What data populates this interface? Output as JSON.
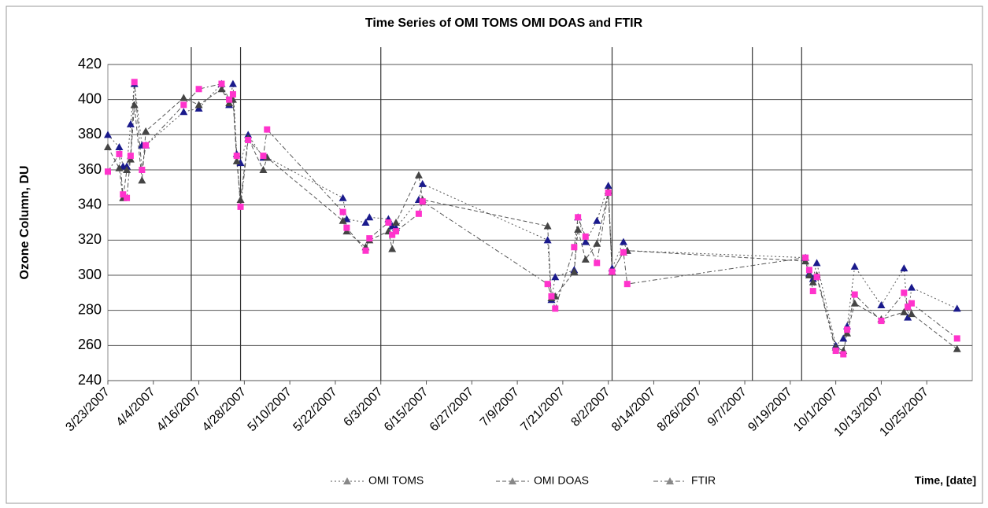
{
  "chart_data": {
    "type": "line",
    "title": "Time Series of OMI TOMS OMI DOAS and FTIR",
    "y_label": "Ozone Column, DU",
    "x_label": "Time, [date]",
    "x": [
      "3/23/2007",
      "3/26/2007",
      "3/27/2007",
      "3/28/2007",
      "3/29/2007",
      "3/30/2007",
      "4/1/2007",
      "4/2/2007",
      "4/12/2007",
      "4/16/2007",
      "4/22/2007",
      "4/24/2007",
      "4/25/2007",
      "4/26/2007",
      "4/27/2007",
      "4/29/2007",
      "5/3/2007",
      "5/4/2007",
      "5/24/2007",
      "5/25/2007",
      "5/30/2007",
      "5/31/2007",
      "6/5/2007",
      "6/6/2007",
      "6/7/2007",
      "6/13/2007",
      "6/14/2007",
      "7/17/2007",
      "7/18/2007",
      "7/19/2007",
      "7/24/2007",
      "7/25/2007",
      "7/27/2007",
      "7/30/2007",
      "8/2/2007",
      "8/3/2007",
      "8/6/2007",
      "8/7/2007",
      "9/23/2007",
      "9/24/2007",
      "9/25/2007",
      "9/26/2007",
      "10/1/2007",
      "10/3/2007",
      "10/4/2007",
      "10/6/2007",
      "10/13/2007",
      "10/19/2007",
      "10/20/2007",
      "10/21/2007",
      "11/2/2007"
    ],
    "series": [
      {
        "name": "OMI TOMS",
        "color": "#1a1a8c",
        "marker": "triangle",
        "values": [
          380,
          373,
          362,
          362,
          386,
          409,
          374,
          374,
          393,
          395,
          409,
          397,
          409,
          369,
          364,
          380,
          367,
          367,
          344,
          332,
          330,
          333,
          332,
          328,
          327,
          343,
          352,
          320,
          286,
          299,
          303,
          333,
          319,
          331,
          351,
          304,
          319,
          314,
          310,
          301,
          298,
          307,
          260,
          264,
          271,
          305,
          283,
          304,
          276,
          293,
          281
        ]
      },
      {
        "name": "OMI DOAS",
        "color": "#444444",
        "marker": "triangle",
        "values": [
          373,
          361,
          344,
          360,
          366,
          397,
          354,
          382,
          401,
          397,
          406,
          398,
          400,
          365,
          343,
          378,
          360,
          367,
          331,
          325,
          316,
          320,
          325,
          315,
          330,
          357,
          343,
          328,
          287,
          288,
          302,
          326,
          309,
          318,
          348,
          302,
          313,
          314,
          308,
          300,
          296,
          300,
          259,
          257,
          267,
          284,
          275,
          279,
          282,
          278,
          258
        ]
      },
      {
        "name": "FTIR",
        "color": "#ff33cc",
        "marker": "square",
        "values": [
          359,
          369,
          346,
          344,
          368,
          410,
          360,
          374,
          397,
          406,
          409,
          400,
          403,
          368,
          339,
          377,
          368,
          383,
          336,
          327,
          314,
          321,
          330,
          323,
          325,
          335,
          342,
          295,
          288,
          281,
          316,
          333,
          322,
          307,
          347,
          302,
          313,
          295,
          310,
          303,
          291,
          299,
          257,
          255,
          269,
          289,
          274,
          290,
          282,
          284,
          264
        ]
      }
    ],
    "xlim": [
      "3/23/2007",
      "11/6/2007"
    ],
    "xticks": [
      "3/23/2007",
      "4/4/2007",
      "4/16/2007",
      "4/28/2007",
      "5/10/2007",
      "5/22/2007",
      "6/3/2007",
      "6/15/2007",
      "6/27/2007",
      "7/9/2007",
      "7/21/2007",
      "8/2/2007",
      "8/14/2007",
      "8/26/2007",
      "9/7/2007",
      "9/19/2007",
      "10/1/2007",
      "10/13/2007",
      "10/25/2007"
    ],
    "ylim": [
      240,
      420
    ],
    "yticks": [
      240,
      260,
      280,
      300,
      320,
      340,
      360,
      380,
      400,
      420
    ],
    "vertical_lines": [
      "4/14/2007",
      "4/27/2007",
      "6/3/2007",
      "8/3/2007",
      "9/9/2007",
      "9/22/2007"
    ],
    "grid": true,
    "legend": "bottom"
  }
}
